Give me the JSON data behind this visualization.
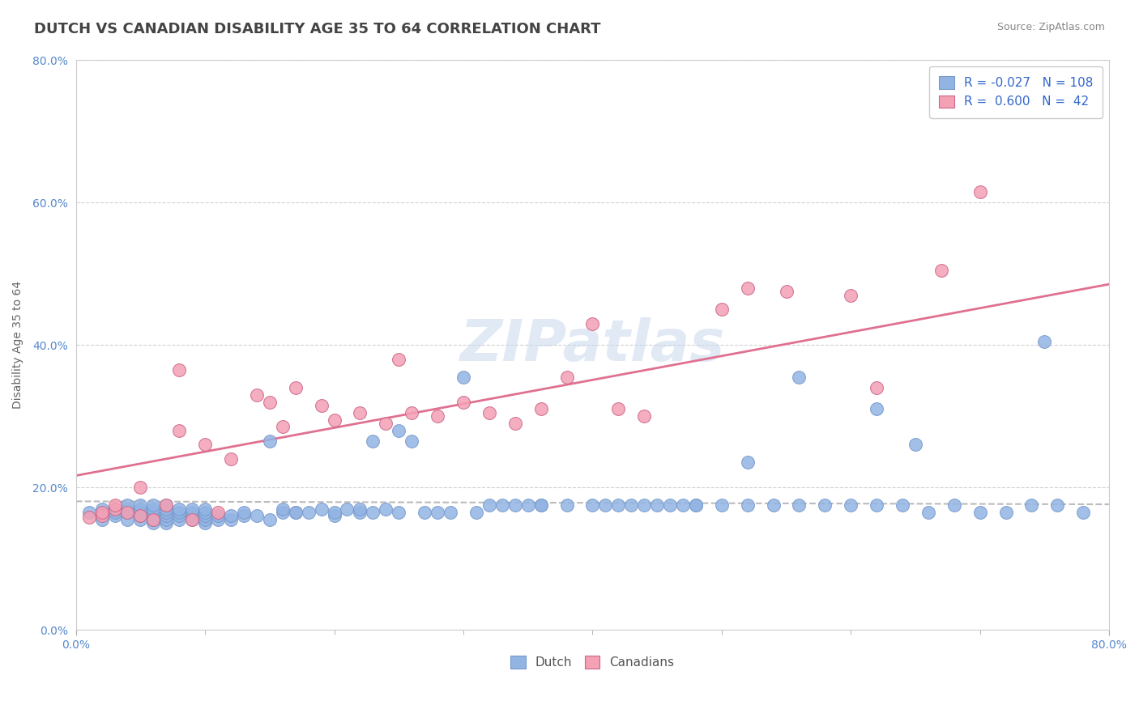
{
  "title": "DUTCH VS CANADIAN DISABILITY AGE 35 TO 64 CORRELATION CHART",
  "source_text": "Source: ZipAtlas.com",
  "ylabel": "Disability Age 35 to 64",
  "xlim": [
    0.0,
    0.8
  ],
  "ylim": [
    0.0,
    0.8
  ],
  "ytick_values": [
    0.0,
    0.2,
    0.4,
    0.6,
    0.8
  ],
  "dutch_R": -0.027,
  "dutch_N": 108,
  "canadian_R": 0.6,
  "canadian_N": 42,
  "dutch_color": "#92b4e3",
  "dutch_edge_color": "#7799cc",
  "canadian_color": "#f4a0b5",
  "canadian_edge_color": "#cc6688",
  "canadian_line_color": "#e07090",
  "dutch_trendline_color": "#bbbbbb",
  "background_color": "#ffffff",
  "grid_color": "#cccccc",
  "dutch_scatter_x": [
    0.01,
    0.02,
    0.02,
    0.03,
    0.03,
    0.03,
    0.04,
    0.04,
    0.04,
    0.04,
    0.05,
    0.05,
    0.05,
    0.05,
    0.05,
    0.06,
    0.06,
    0.06,
    0.06,
    0.06,
    0.06,
    0.07,
    0.07,
    0.07,
    0.07,
    0.07,
    0.07,
    0.08,
    0.08,
    0.08,
    0.08,
    0.09,
    0.09,
    0.09,
    0.09,
    0.1,
    0.1,
    0.1,
    0.1,
    0.1,
    0.11,
    0.11,
    0.12,
    0.12,
    0.13,
    0.13,
    0.14,
    0.15,
    0.15,
    0.16,
    0.16,
    0.17,
    0.17,
    0.18,
    0.19,
    0.2,
    0.2,
    0.21,
    0.22,
    0.22,
    0.23,
    0.23,
    0.24,
    0.25,
    0.25,
    0.26,
    0.27,
    0.28,
    0.29,
    0.3,
    0.31,
    0.32,
    0.33,
    0.34,
    0.35,
    0.36,
    0.38,
    0.4,
    0.41,
    0.42,
    0.43,
    0.44,
    0.45,
    0.46,
    0.47,
    0.48,
    0.5,
    0.52,
    0.54,
    0.56,
    0.58,
    0.6,
    0.62,
    0.64,
    0.65,
    0.66,
    0.68,
    0.7,
    0.72,
    0.74,
    0.76,
    0.78,
    0.75,
    0.56,
    0.62,
    0.52,
    0.48,
    0.36
  ],
  "dutch_scatter_y": [
    0.165,
    0.155,
    0.17,
    0.16,
    0.165,
    0.17,
    0.155,
    0.165,
    0.17,
    0.175,
    0.155,
    0.16,
    0.165,
    0.17,
    0.175,
    0.15,
    0.155,
    0.16,
    0.165,
    0.17,
    0.175,
    0.15,
    0.155,
    0.16,
    0.165,
    0.17,
    0.175,
    0.155,
    0.16,
    0.165,
    0.17,
    0.155,
    0.16,
    0.165,
    0.17,
    0.15,
    0.155,
    0.16,
    0.165,
    0.17,
    0.155,
    0.16,
    0.155,
    0.16,
    0.16,
    0.165,
    0.16,
    0.265,
    0.155,
    0.165,
    0.17,
    0.165,
    0.165,
    0.165,
    0.17,
    0.16,
    0.165,
    0.17,
    0.165,
    0.17,
    0.265,
    0.165,
    0.17,
    0.28,
    0.165,
    0.265,
    0.165,
    0.165,
    0.165,
    0.355,
    0.165,
    0.175,
    0.175,
    0.175,
    0.175,
    0.175,
    0.175,
    0.175,
    0.175,
    0.175,
    0.175,
    0.175,
    0.175,
    0.175,
    0.175,
    0.175,
    0.175,
    0.175,
    0.175,
    0.175,
    0.175,
    0.175,
    0.175,
    0.175,
    0.26,
    0.165,
    0.175,
    0.165,
    0.165,
    0.175,
    0.175,
    0.165,
    0.405,
    0.355,
    0.31,
    0.235,
    0.175,
    0.175
  ],
  "canadian_scatter_x": [
    0.01,
    0.02,
    0.02,
    0.03,
    0.03,
    0.04,
    0.05,
    0.05,
    0.06,
    0.07,
    0.08,
    0.09,
    0.1,
    0.11,
    0.12,
    0.14,
    0.15,
    0.16,
    0.17,
    0.19,
    0.2,
    0.22,
    0.24,
    0.26,
    0.28,
    0.3,
    0.32,
    0.34,
    0.36,
    0.38,
    0.4,
    0.42,
    0.44,
    0.5,
    0.52,
    0.55,
    0.6,
    0.62,
    0.67,
    0.7,
    0.25,
    0.08
  ],
  "canadian_scatter_y": [
    0.158,
    0.16,
    0.165,
    0.17,
    0.175,
    0.165,
    0.16,
    0.2,
    0.155,
    0.175,
    0.28,
    0.155,
    0.26,
    0.165,
    0.24,
    0.33,
    0.32,
    0.285,
    0.34,
    0.315,
    0.295,
    0.305,
    0.29,
    0.305,
    0.3,
    0.32,
    0.305,
    0.29,
    0.31,
    0.355,
    0.43,
    0.31,
    0.3,
    0.45,
    0.48,
    0.475,
    0.47,
    0.34,
    0.505,
    0.615,
    0.38,
    0.365
  ],
  "watermark_text": "ZIPatlas",
  "title_fontsize": 13,
  "axis_label_fontsize": 10,
  "tick_fontsize": 10,
  "legend_fontsize": 11
}
